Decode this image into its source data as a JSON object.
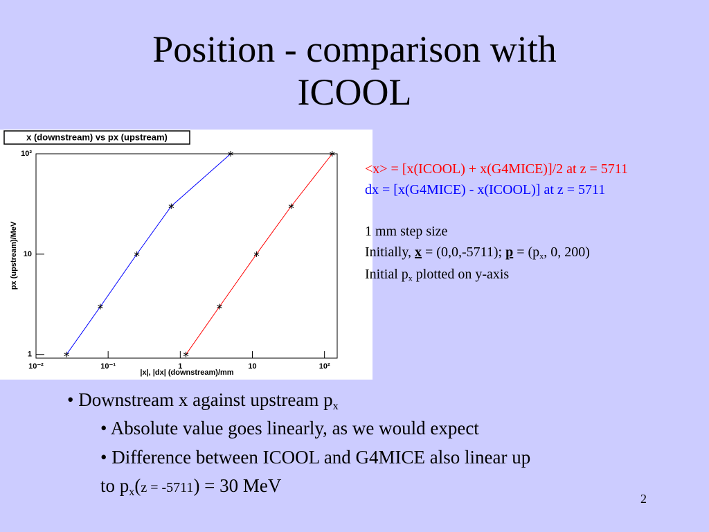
{
  "title": "Position - comparison with ICOOL",
  "notes": {
    "step": "1 mm step size",
    "initially": [
      "Initially, ",
      "x",
      " = (0,0,-5711); ",
      "p",
      " = (p",
      "x",
      ", 0, 200)"
    ],
    "initial_px": [
      "Initial p",
      "x",
      " plotted on y-axis"
    ]
  },
  "bullets": [
    [
      "• Downstream x against upstream p",
      "x"
    ],
    [
      "• Absolute value goes linearly, as we would expect"
    ],
    [
      "• Difference between ICOOL and G4MICE also linear up"
    ],
    [
      "to p",
      "x",
      "(",
      "z = -5711",
      ") = 30 MeV"
    ]
  ],
  "page_number": "2",
  "chart_data": {
    "type": "line",
    "title": "x (downstream) vs px (upstream)",
    "x_label": "|x|, |dx| (downstream)/mm",
    "y_label": "px (upstream)/MeV",
    "x_log": true,
    "y_log": true,
    "xlim": [
      0.01,
      150
    ],
    "ylim": [
      0.92,
      100
    ],
    "xticks": [
      {
        "value": 0.01,
        "label": "10⁻²"
      },
      {
        "value": 0.1,
        "label": "10⁻¹"
      },
      1,
      10,
      {
        "value": 100,
        "label": "10²"
      }
    ],
    "yticks": [
      1,
      10,
      {
        "value": 100,
        "label": "10²"
      }
    ],
    "series": [
      {
        "name": "<x> = [x(ICOOL) + x(G4MICE)]/2 at z = 5711",
        "color": "#ff0000",
        "x": [
          1.2,
          3.5,
          11.4,
          34.5,
          128
        ],
        "values": [
          1,
          3,
          10,
          30,
          100
        ]
      },
      {
        "name": "dx = [x(G4MICE) - x(ICOOL)] at z = 5711",
        "color": "#0000ff",
        "x": [
          0.0265,
          0.078,
          0.25,
          0.75,
          5.0
        ],
        "values": [
          1,
          3,
          10,
          30,
          100
        ]
      }
    ]
  }
}
